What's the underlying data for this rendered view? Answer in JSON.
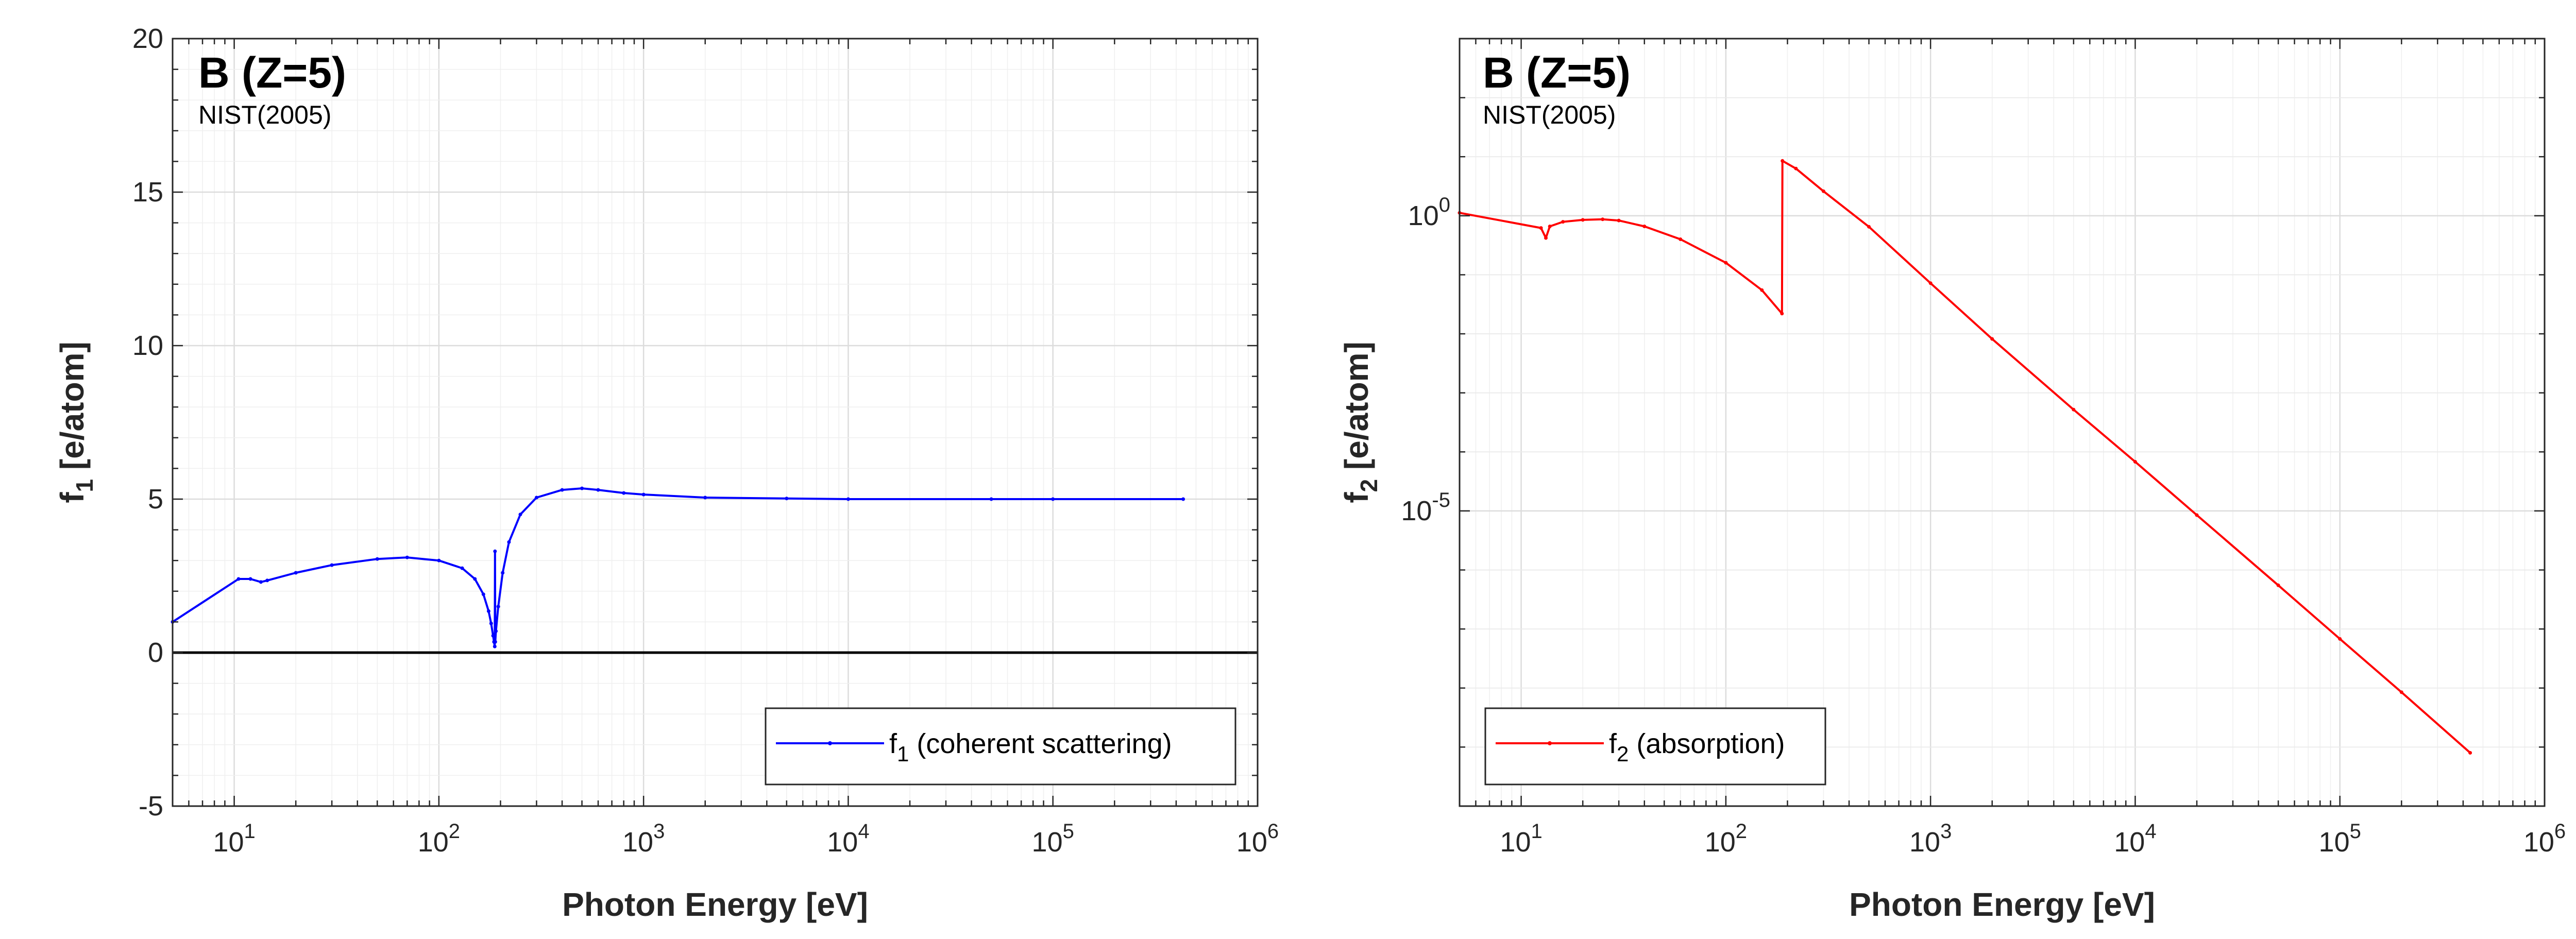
{
  "chart_data": [
    {
      "type": "line",
      "title": "B (Z=5)",
      "subtitle": "NIST(2005)",
      "xlabel": "Photon Energy [eV]",
      "ylabel_main": "f",
      "ylabel_sub": "1",
      "ylabel_rest": " [e/atom]",
      "xscale": "log",
      "yscale": "linear",
      "xlim": [
        5,
        1000000
      ],
      "ylim": [
        -5,
        20
      ],
      "grid": true,
      "legend_position": "bottom-right",
      "xtick_labels": [
        {
          "value": 10,
          "base": "10",
          "exp": "1"
        },
        {
          "value": 100,
          "base": "10",
          "exp": "2"
        },
        {
          "value": 1000,
          "base": "10",
          "exp": "3"
        },
        {
          "value": 10000,
          "base": "10",
          "exp": "4"
        },
        {
          "value": 100000,
          "base": "10",
          "exp": "5"
        },
        {
          "value": 1000000,
          "base": "10",
          "exp": "6"
        }
      ],
      "ytick_labels": [
        {
          "value": -5,
          "label": "-5"
        },
        {
          "value": 0,
          "label": "0"
        },
        {
          "value": 5,
          "label": "5"
        },
        {
          "value": 10,
          "label": "10"
        },
        {
          "value": 15,
          "label": "15"
        },
        {
          "value": 20,
          "label": "20"
        }
      ],
      "reference_line": {
        "y": 0,
        "color": "#000000"
      },
      "series": [
        {
          "legend_main": "f",
          "legend_sub": "1",
          "legend_rest": " (coherent scattering)",
          "color": "#0000ff",
          "x": [
            5,
            10.5,
            12,
            13.5,
            14.5,
            20,
            30,
            50,
            70,
            100,
            130,
            150,
            165,
            175,
            180,
            184,
            186,
            187.5,
            188,
            188.5,
            190,
            195,
            205,
            220,
            250,
            300,
            400,
            500,
            600,
            800,
            1000,
            2000,
            5000,
            10000,
            50000,
            100000,
            433000
          ],
          "y": [
            1.0,
            2.4,
            2.4,
            2.3,
            2.35,
            2.6,
            2.85,
            3.05,
            3.1,
            3.0,
            2.75,
            2.4,
            1.9,
            1.35,
            0.95,
            0.55,
            0.35,
            0.2,
            3.3,
            0.35,
            0.7,
            1.5,
            2.6,
            3.6,
            4.5,
            5.05,
            5.3,
            5.35,
            5.3,
            5.2,
            5.15,
            5.05,
            5.02,
            5.0,
            5.0,
            5.0,
            5.0
          ]
        }
      ]
    },
    {
      "type": "line",
      "title": "B (Z=5)",
      "subtitle": "NIST(2005)",
      "xlabel": "Photon Energy [eV]",
      "ylabel_main": "f",
      "ylabel_sub": "2",
      "ylabel_rest": " [e/atom]",
      "xscale": "log",
      "yscale": "log",
      "xlim": [
        5,
        1000000
      ],
      "ylim": [
        1e-10,
        1000
      ],
      "grid": true,
      "legend_position": "bottom-left",
      "xtick_labels": [
        {
          "value": 10,
          "base": "10",
          "exp": "1"
        },
        {
          "value": 100,
          "base": "10",
          "exp": "2"
        },
        {
          "value": 1000,
          "base": "10",
          "exp": "3"
        },
        {
          "value": 10000,
          "base": "10",
          "exp": "4"
        },
        {
          "value": 100000,
          "base": "10",
          "exp": "5"
        },
        {
          "value": 1000000,
          "base": "10",
          "exp": "6"
        }
      ],
      "ytick_labels": [
        {
          "value": 1,
          "base": "10",
          "exp": "0"
        },
        {
          "value": 1e-05,
          "base": "10",
          "exp": "-5"
        }
      ],
      "series": [
        {
          "legend_main": "f",
          "legend_sub": "2",
          "legend_rest": " (absorption)",
          "color": "#ff0000",
          "x": [
            5,
            12.5,
            13.2,
            13.8,
            16,
            20,
            25,
            30,
            40,
            60,
            100,
            150,
            188,
            189,
            220,
            300,
            500,
            1000,
            2000,
            5000,
            10000,
            20000,
            50000,
            100000,
            200000,
            433000
          ],
          "y": [
            1.12,
            0.62,
            0.42,
            0.66,
            0.79,
            0.85,
            0.87,
            0.83,
            0.66,
            0.4,
            0.16,
            0.055,
            0.022,
            8.5,
            6.3,
            2.6,
            0.65,
            0.072,
            0.0082,
            0.00052,
            6.8e-05,
            8.5e-06,
            5.5e-07,
            6.8e-08,
            8.5e-09,
            8e-10
          ]
        }
      ]
    }
  ]
}
